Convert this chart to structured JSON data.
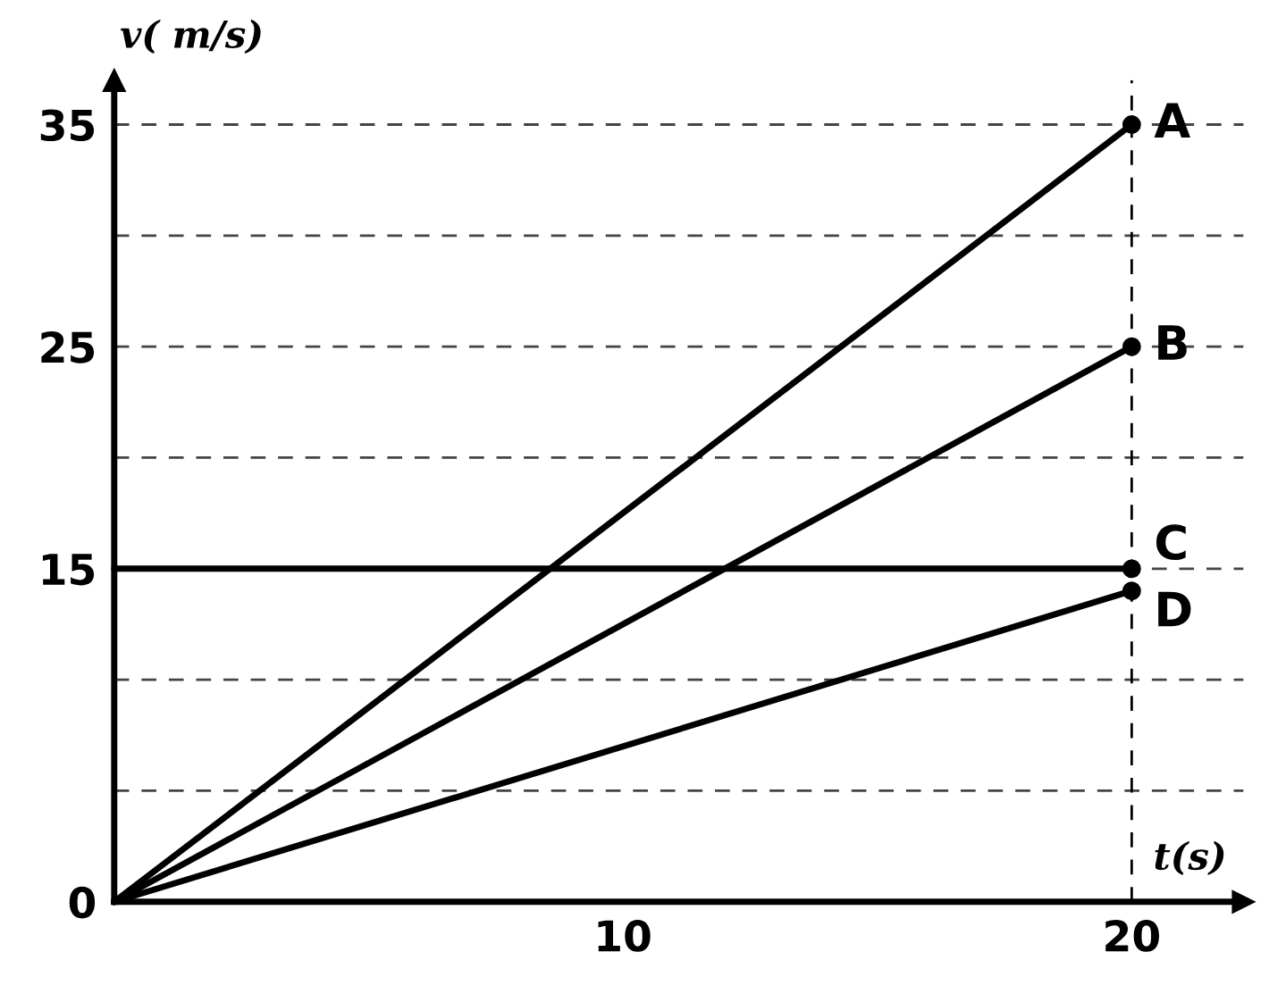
{
  "chart_data": {
    "type": "line",
    "xlabel": "t(s)",
    "ylabel": "v( m/s)",
    "x": [
      0,
      20
    ],
    "series": [
      {
        "name": "A",
        "color": "#000000",
        "values": [
          0,
          35
        ]
      },
      {
        "name": "B",
        "color": "#000000",
        "values": [
          0,
          25
        ]
      },
      {
        "name": "C",
        "color": "#000000",
        "values": [
          15,
          15
        ]
      },
      {
        "name": "D",
        "color": "#000000",
        "values": [
          0,
          14
        ]
      }
    ],
    "xlim": [
      0,
      22.2
    ],
    "ylim": [
      0,
      37
    ],
    "xticks": [
      10,
      20
    ],
    "yticks": [
      0,
      {
        "value": 5,
        "label": null
      },
      {
        "value": 10,
        "label": null
      },
      15,
      {
        "value": 20,
        "label": null
      },
      25,
      {
        "value": 30,
        "label": null
      },
      35
    ],
    "grid": "y",
    "marker": "circle",
    "line_style": "solid",
    "ref_lines": [
      {
        "axis": "x",
        "value": 20,
        "label": null,
        "line_style": "dashed",
        "color": "#000000"
      }
    ]
  }
}
